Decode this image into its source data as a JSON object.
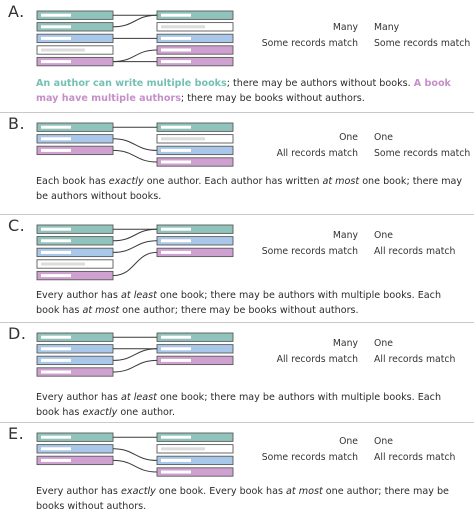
{
  "colors": {
    "teal": "#8fc3bb",
    "blue": "#a9c8e9",
    "pink": "#cfa1d1",
    "empty": "#ffffff",
    "border": "#5a5a5a",
    "inner_bar": "#ffffff",
    "inner_bar_on_empty": "#dcdcdc",
    "line": "#3a3a3a",
    "divider": "#c9c9c9"
  },
  "panels": [
    {
      "label": "A.",
      "left_col": [
        "Many",
        "Some records match"
      ],
      "right_col": [
        "Many",
        "Some records match"
      ],
      "description": [
        {
          "text": "An author can write multiple books",
          "style": "hl-teal"
        },
        {
          "text": "; there may be authors without books. "
        },
        {
          "text": "A book may have multiple authors",
          "style": "hl-pink"
        },
        {
          "text": "; there may be books without authors."
        }
      ],
      "left_rows": [
        "teal",
        "teal",
        "blue",
        "empty",
        "pink"
      ],
      "right_rows": [
        "teal",
        "empty",
        "blue",
        "pink",
        "pink"
      ],
      "links": [
        [
          0,
          0
        ],
        [
          1,
          0
        ],
        [
          2,
          2
        ],
        [
          4,
          3
        ],
        [
          4,
          4
        ]
      ]
    },
    {
      "label": "B.",
      "left_col": [
        "One",
        "All records match"
      ],
      "right_col": [
        "One",
        "Some records match"
      ],
      "description": [
        {
          "text": "Each book has "
        },
        {
          "text": "exactly",
          "style": "em"
        },
        {
          "text": " one author. Each author has written "
        },
        {
          "text": "at most",
          "style": "em"
        },
        {
          "text": " one book; there may be authors without books."
        }
      ],
      "left_rows": [
        "teal",
        "blue",
        "pink"
      ],
      "right_rows": [
        "teal",
        "empty",
        "blue",
        "pink"
      ],
      "links": [
        [
          0,
          0
        ],
        [
          1,
          2
        ],
        [
          2,
          3
        ]
      ]
    },
    {
      "label": "C.",
      "left_col": [
        "Many",
        "Some records match"
      ],
      "right_col": [
        "One",
        "All records match"
      ],
      "description": [
        {
          "text": "Every author has "
        },
        {
          "text": "at least",
          "style": "em"
        },
        {
          "text": " one book; there may be authors with multiple books. Each book has "
        },
        {
          "text": "at most",
          "style": "em"
        },
        {
          "text": " one author; there may be books without authors."
        }
      ],
      "left_rows": [
        "teal",
        "teal",
        "blue",
        "empty",
        "pink"
      ],
      "right_rows": [
        "teal",
        "blue",
        "pink"
      ],
      "links": [
        [
          0,
          0
        ],
        [
          1,
          0
        ],
        [
          2,
          1
        ],
        [
          4,
          2
        ]
      ]
    },
    {
      "label": "D.",
      "left_col": [
        "Many",
        "All records match"
      ],
      "right_col": [
        "One",
        "All records match"
      ],
      "description": [
        {
          "text": "Every author has "
        },
        {
          "text": "at least",
          "style": "em"
        },
        {
          "text": " one book; there may be authors with multiple books. Each book has "
        },
        {
          "text": "exactly",
          "style": "em"
        },
        {
          "text": " one author."
        }
      ],
      "left_rows": [
        "teal",
        "blue",
        "blue",
        "pink"
      ],
      "right_rows": [
        "teal",
        "blue",
        "pink"
      ],
      "links": [
        [
          0,
          0
        ],
        [
          1,
          1
        ],
        [
          2,
          1
        ],
        [
          3,
          2
        ]
      ]
    },
    {
      "label": "E.",
      "left_col": [
        "One",
        "Some records match"
      ],
      "right_col": [
        "One",
        "All records match"
      ],
      "description": [
        {
          "text": "Every author has "
        },
        {
          "text": "exactly",
          "style": "em"
        },
        {
          "text": " one book. Every book has "
        },
        {
          "text": "at most",
          "style": "em"
        },
        {
          "text": " one author; there may be books without authors."
        }
      ],
      "left_rows": [
        "teal",
        "blue",
        "pink"
      ],
      "right_rows": [
        "teal",
        "empty",
        "blue",
        "pink"
      ],
      "links": [
        [
          0,
          0
        ],
        [
          1,
          2
        ],
        [
          2,
          3
        ]
      ]
    }
  ]
}
